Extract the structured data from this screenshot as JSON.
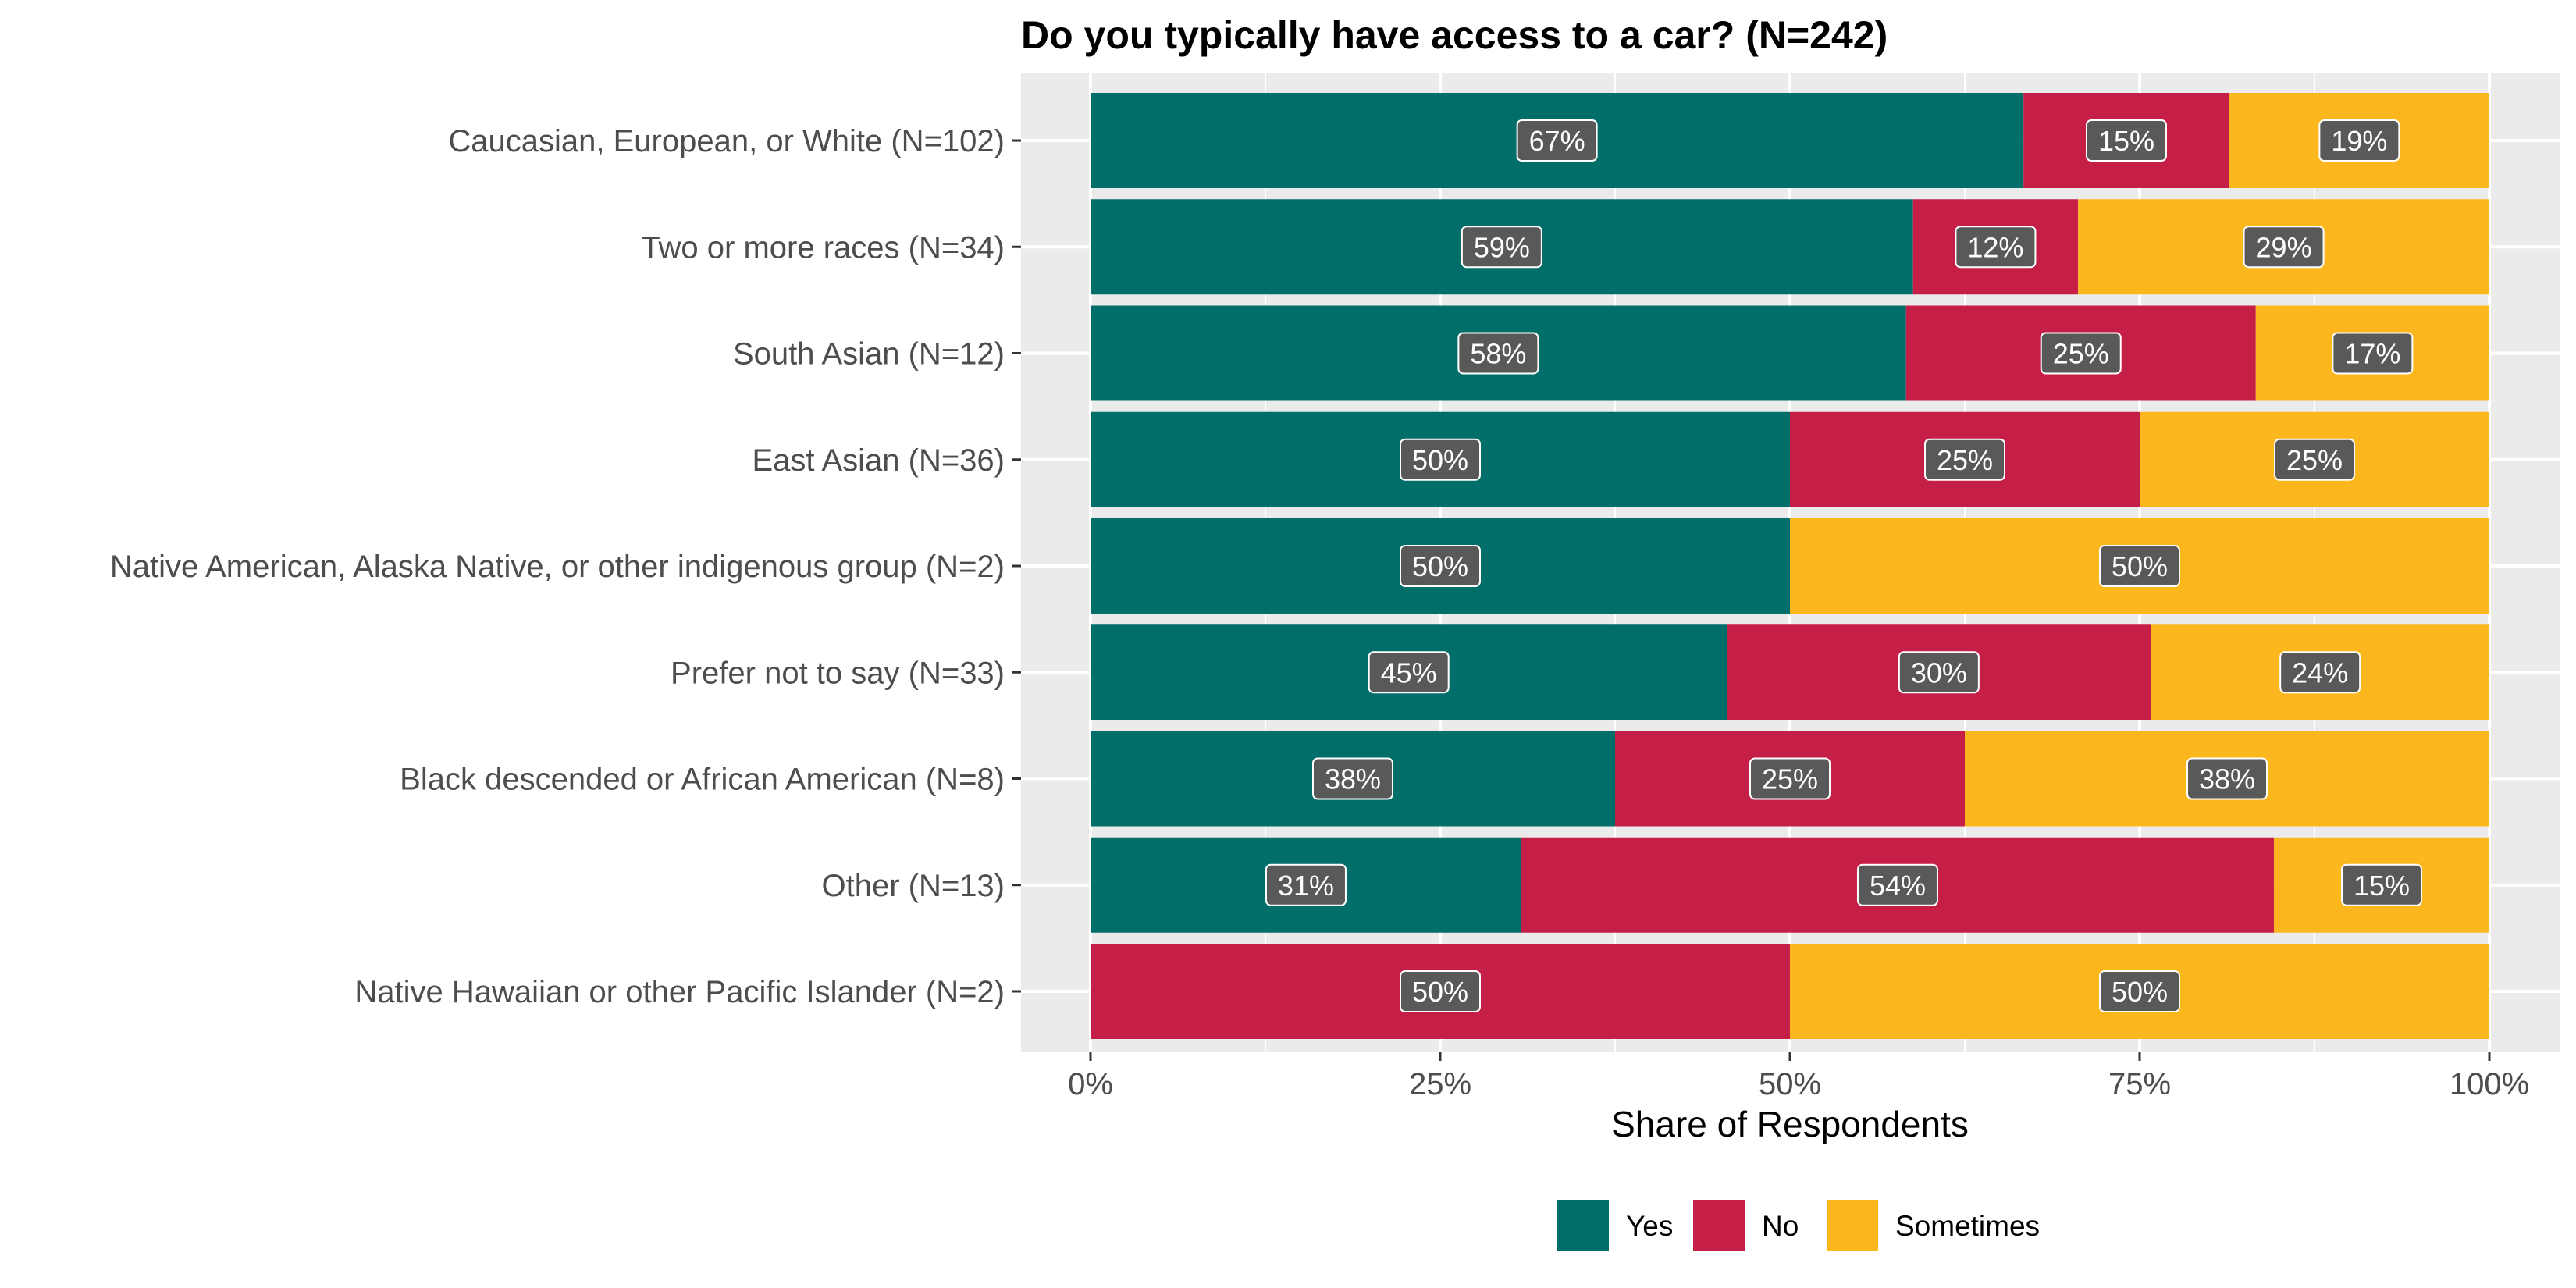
{
  "chart_data": {
    "type": "bar",
    "orientation": "horizontal",
    "stacked": true,
    "normalized": true,
    "title": "Do you typically have access to a car? (N=242)",
    "xlabel": "Share of Respondents",
    "ylabel": "",
    "xlim": [
      0,
      1
    ],
    "x_ticks": [
      0,
      0.25,
      0.5,
      0.75,
      1
    ],
    "x_tick_labels": [
      "0%",
      "25%",
      "50%",
      "75%",
      "100%"
    ],
    "grid": true,
    "legend_position": "bottom",
    "categories": [
      "Caucasian, European, or White (N=102)",
      "Two or more races (N=34)",
      "South Asian (N=12)",
      "East Asian (N=36)",
      "Native American, Alaska Native, or other indigenous group (N=2)",
      "Prefer not to say (N=33)",
      "Black descended or African American (N=8)",
      "Other (N=13)",
      "Native Hawaiian or other Pacific Islander (N=2)"
    ],
    "series": [
      {
        "name": "Yes",
        "color": "#016e6a",
        "values": [
          0.667,
          0.588,
          0.583,
          0.5,
          0.5,
          0.455,
          0.375,
          0.308,
          0
        ],
        "labels": [
          "67%",
          "59%",
          "58%",
          "50%",
          "50%",
          "45%",
          "38%",
          "31%",
          ""
        ]
      },
      {
        "name": "No",
        "color": "#c51e47",
        "values": [
          0.147,
          0.118,
          0.25,
          0.25,
          0,
          0.303,
          0.25,
          0.538,
          0.5
        ],
        "labels": [
          "15%",
          "12%",
          "25%",
          "25%",
          "",
          "30%",
          "25%",
          "54%",
          "50%"
        ]
      },
      {
        "name": "Sometimes",
        "color": "#fdb71e",
        "values": [
          0.186,
          0.294,
          0.167,
          0.25,
          0.5,
          0.242,
          0.375,
          0.154,
          0.5
        ],
        "labels": [
          "19%",
          "29%",
          "17%",
          "25%",
          "50%",
          "24%",
          "38%",
          "15%",
          "50%"
        ]
      }
    ]
  }
}
